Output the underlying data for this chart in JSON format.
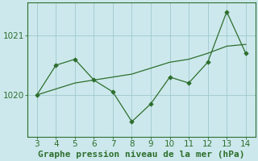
{
  "x": [
    3,
    4,
    5,
    6,
    7,
    8,
    9,
    10,
    11,
    12,
    13,
    14
  ],
  "y_jagged": [
    1020.0,
    1020.5,
    1020.6,
    1020.25,
    1020.05,
    1019.55,
    1019.85,
    1020.3,
    1020.2,
    1020.55,
    1021.4,
    1020.7
  ],
  "y_smooth": [
    1020.0,
    1020.1,
    1020.2,
    1020.25,
    1020.3,
    1020.35,
    1020.45,
    1020.55,
    1020.6,
    1020.7,
    1020.82,
    1020.85
  ],
  "line_color": "#2d6e2d",
  "background_color": "#cce8ec",
  "grid_color": "#9ec8cc",
  "axis_color": "#2d6e2d",
  "border_color": "#2d6e2d",
  "title": "Graphe pression niveau de la mer (hPa)",
  "xlim": [
    2.5,
    14.5
  ],
  "ylim": [
    1019.3,
    1021.55
  ],
  "yticks": [
    1020,
    1021
  ],
  "xticks": [
    3,
    4,
    5,
    6,
    7,
    8,
    9,
    10,
    11,
    12,
    13,
    14
  ],
  "title_fontsize": 8,
  "tick_fontsize": 7.5
}
